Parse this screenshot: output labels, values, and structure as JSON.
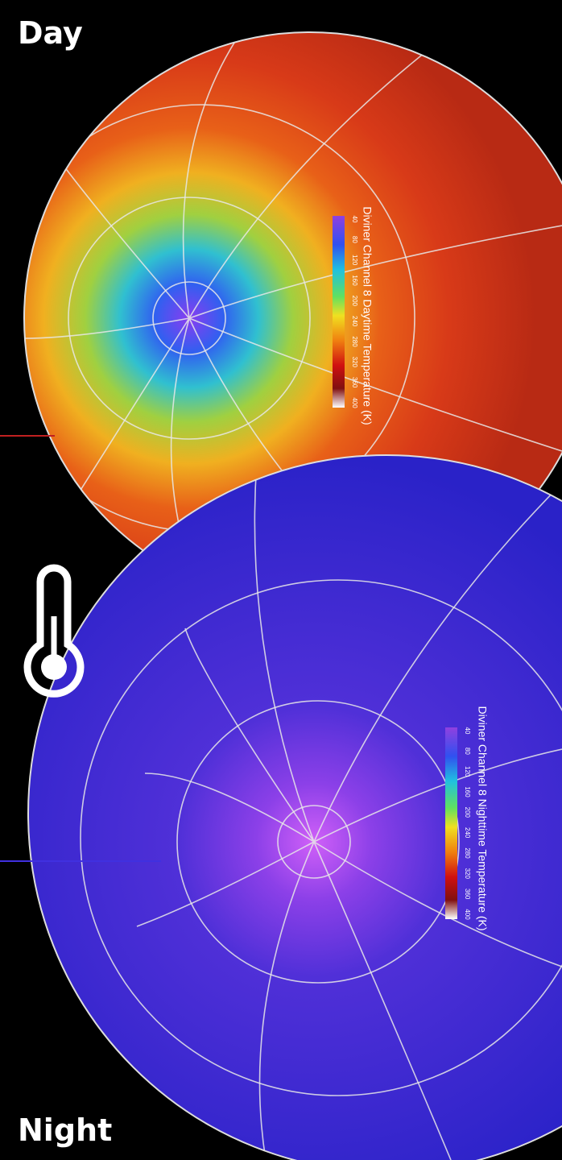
{
  "labels": {
    "day": "Day",
    "night": "Night"
  },
  "maps": [
    {
      "title": "Diviner Channel 8 Daytime Temperature (K)",
      "scale_ticks": [
        40,
        80,
        120,
        160,
        200,
        240,
        280,
        320,
        360,
        400
      ]
    },
    {
      "title": "Diviner Channel 8 Nighttime Temperature (K)",
      "scale_ticks": [
        40,
        80,
        120,
        160,
        200,
        240,
        280,
        320,
        360,
        400
      ]
    }
  ]
}
